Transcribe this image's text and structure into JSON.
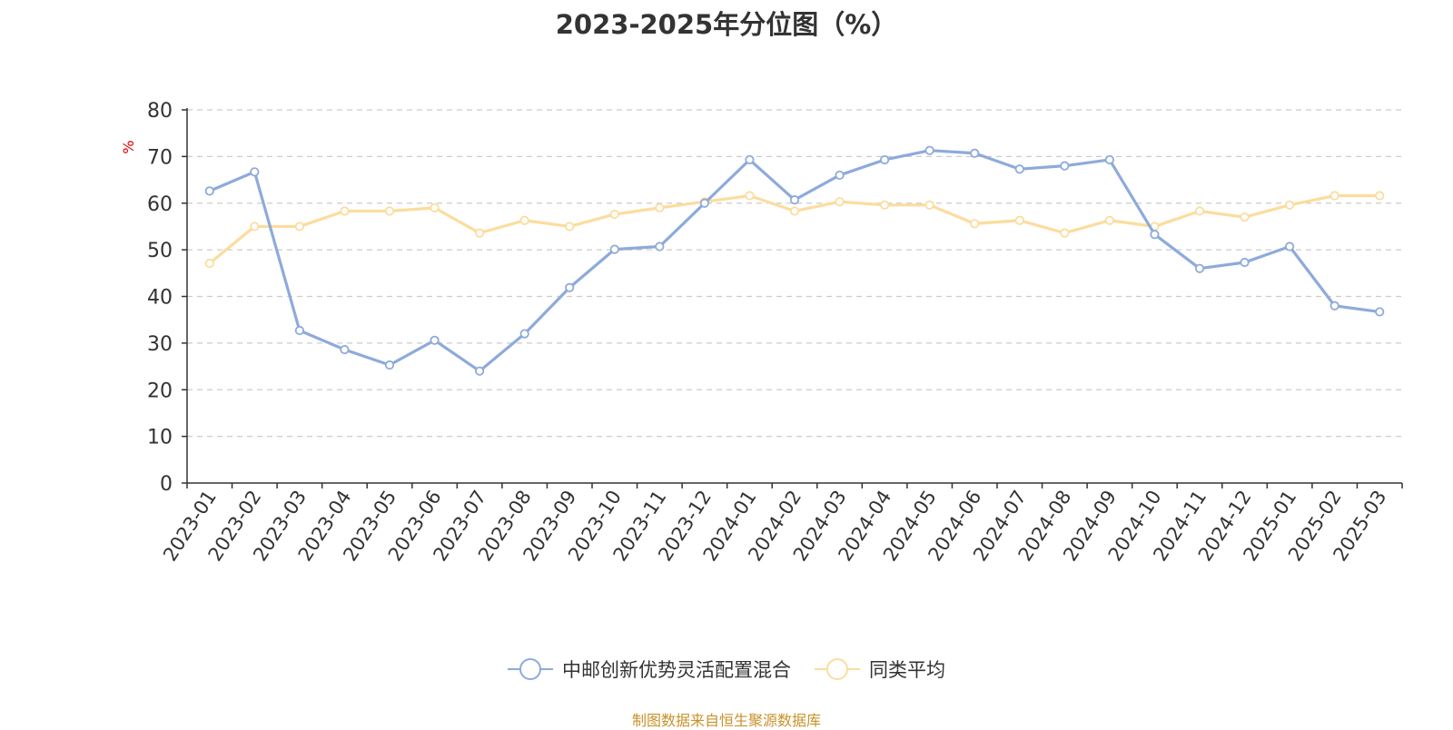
{
  "chart_data": {
    "type": "line",
    "title": "2023-2025年分位图（%）",
    "ylabel": "%",
    "ylim": [
      0,
      80
    ],
    "yticks": [
      0,
      10,
      20,
      30,
      40,
      50,
      60,
      70,
      80
    ],
    "grid": true,
    "legend_position": "bottom",
    "categories": [
      "2023-01",
      "2023-02",
      "2023-03",
      "2023-04",
      "2023-05",
      "2023-06",
      "2023-07",
      "2023-08",
      "2023-09",
      "2023-10",
      "2023-11",
      "2023-12",
      "2024-01",
      "2024-02",
      "2024-03",
      "2024-04",
      "2024-05",
      "2024-06",
      "2024-07",
      "2024-08",
      "2024-09",
      "2024-10",
      "2024-11",
      "2024-12",
      "2025-01",
      "2025-02",
      "2025-03"
    ],
    "series": [
      {
        "name": "中邮创新优势灵活配置混合",
        "color": "#8eaadb",
        "values": [
          62.6,
          66.7,
          32.7,
          28.6,
          25.3,
          30.6,
          24.0,
          32.0,
          41.9,
          50.1,
          50.7,
          60.0,
          69.3,
          60.7,
          66.0,
          69.3,
          71.3,
          70.7,
          67.3,
          68.0,
          69.3,
          53.3,
          46.0,
          47.3,
          50.7,
          38.0,
          36.7
        ]
      },
      {
        "name": "同类平均",
        "color": "#fcdc9e",
        "values": [
          47.1,
          55.0,
          55.0,
          58.3,
          58.3,
          59.0,
          53.6,
          56.3,
          55.0,
          57.6,
          59.0,
          60.3,
          61.6,
          58.3,
          60.3,
          59.6,
          59.6,
          55.6,
          56.3,
          53.6,
          56.3,
          55.0,
          58.3,
          57.0,
          59.6,
          61.6,
          61.6
        ]
      }
    ]
  },
  "source_text": "制图数据来自恒生聚源数据库"
}
